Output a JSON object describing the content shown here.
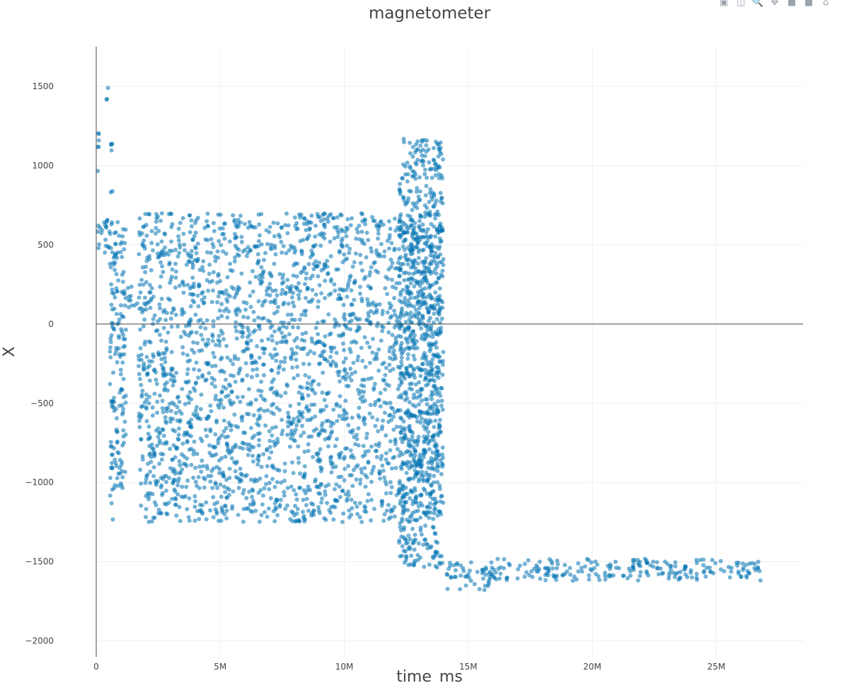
{
  "modebar": {
    "buttons": [
      {
        "name": "download-plot-icon",
        "glyph": "▣"
      },
      {
        "name": "edit-chart-icon",
        "glyph": "◫"
      },
      {
        "name": "zoom-icon",
        "glyph": "🔍"
      },
      {
        "name": "pan-icon",
        "glyph": "✥"
      },
      {
        "name": "zoom-in-icon",
        "glyph": "■"
      },
      {
        "name": "zoom-out-icon",
        "glyph": "■"
      },
      {
        "name": "home-icon",
        "glyph": "⌂"
      }
    ]
  },
  "chart_data": {
    "type": "scatter",
    "title": "magnetometer",
    "xlabel": "time_ms",
    "ylabel": "X",
    "xlim": [
      0,
      28500000
    ],
    "ylim": [
      -2100,
      1750
    ],
    "xticks": [
      0,
      5000000,
      10000000,
      15000000,
      20000000,
      25000000
    ],
    "xtick_labels": [
      "0",
      "5M",
      "10M",
      "15M",
      "20M",
      "25M"
    ],
    "yticks": [
      -2000,
      -1500,
      -1000,
      -500,
      0,
      500,
      1000,
      1500
    ],
    "ytick_labels": [
      "−2000",
      "−1500",
      "−1000",
      "−500",
      "0",
      "500",
      "1000",
      "1500"
    ],
    "grid": true,
    "marker_color": "#0072b2",
    "marker_opacity": 0.55,
    "segments": [
      {
        "x": [
          0,
          550000
        ],
        "y": [
          450,
          700
        ]
      },
      {
        "x": [
          350000,
          500000
        ],
        "y": [
          1400,
          1530
        ]
      },
      {
        "x": [
          0,
          150000
        ],
        "y": [
          950,
          1230
        ]
      },
      {
        "x": [
          550000,
          700000
        ],
        "y": [
          -1240,
          1150
        ]
      },
      {
        "x": [
          700000,
          1200000
        ],
        "y": [
          -1050,
          650
        ]
      },
      {
        "x": [
          1100000,
          1700000
        ],
        "y": [
          100,
          240
        ]
      },
      {
        "x": [
          1700000,
          14000000
        ],
        "y": [
          -1250,
          700
        ]
      },
      {
        "x": [
          12200000,
          14000000
        ],
        "y": [
          -1550,
          1180
        ]
      },
      {
        "x": [
          14000000,
          16000000
        ],
        "y": [
          -1680,
          -1500
        ]
      },
      {
        "x": [
          16000000,
          26800000
        ],
        "y": [
          -1620,
          -1480
        ]
      }
    ]
  }
}
